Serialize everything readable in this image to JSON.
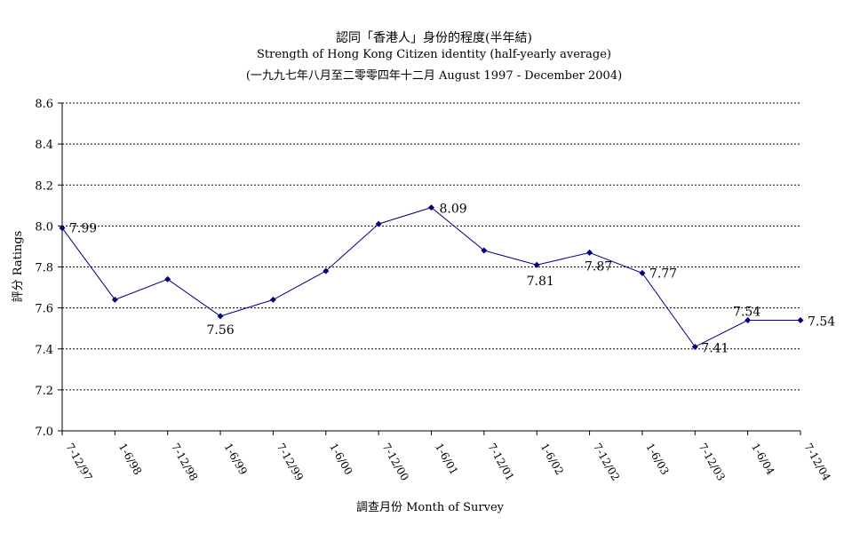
{
  "chart_data": {
    "type": "line",
    "title": "認同「香港人」身份的程度(半年結)",
    "subtitle": "Strength of Hong Kong Citizen identity (half-yearly average)",
    "subtitle2": "(一九九七年八月至二零零四年十二月 August 1997 - December 2004)",
    "xlabel": "調查月份 Month of Survey",
    "ylabel": "評分 Ratings",
    "ylim": [
      7.0,
      8.6
    ],
    "yticks": [
      "7.0",
      "7.2",
      "7.4",
      "7.6",
      "7.8",
      "8.0",
      "8.2",
      "8.4",
      "8.6"
    ],
    "grid": true,
    "legend": "none",
    "categories": [
      "7-12/97",
      "1-6/98",
      "7-12/98",
      "1-6/99",
      "7-12/99",
      "1-6/00",
      "7-12/00",
      "1-6/01",
      "7-12/01",
      "1-6/02",
      "7-12/02",
      "1-6/03",
      "7-12/03",
      "1-6/04",
      "7-12/04"
    ],
    "values": [
      7.99,
      7.64,
      7.74,
      7.56,
      7.64,
      7.78,
      8.01,
      8.09,
      7.88,
      7.81,
      7.87,
      7.77,
      7.41,
      7.54,
      7.54
    ],
    "data_labels": [
      "7.99",
      "",
      "",
      "7.56",
      "",
      "",
      "",
      "8.09",
      "",
      "7.81",
      "7.87",
      "7.77",
      "7.41",
      "7.54",
      "7.54"
    ],
    "line_color": "#000080",
    "grid_color": "#000000"
  }
}
